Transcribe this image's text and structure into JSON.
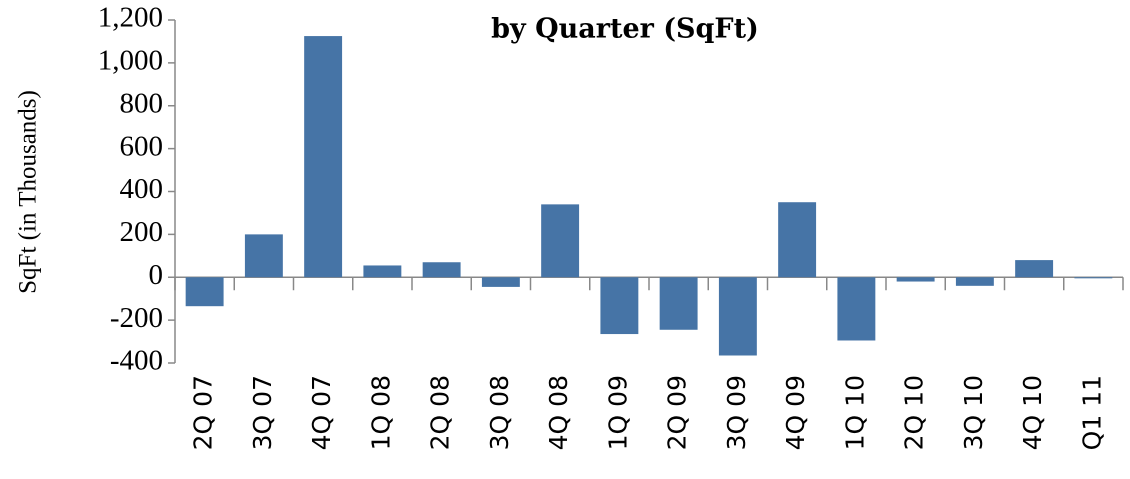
{
  "chart_data": {
    "type": "bar",
    "title": "by Quarter (SqFt)",
    "y_label": "SqFt  (in Thousands)",
    "categories": [
      "2Q 07",
      "3Q 07",
      "4Q 07",
      "1Q 08",
      "2Q 08",
      "3Q 08",
      "4Q 08",
      "1Q 09",
      "2Q 09",
      "3Q 09",
      "4Q 09",
      "1Q 10",
      "2Q 10",
      "3Q 10",
      "4Q 10",
      "Q1 11"
    ],
    "values": [
      -135,
      200,
      1125,
      55,
      70,
      -45,
      340,
      -265,
      -245,
      -365,
      350,
      -295,
      -20,
      -40,
      80,
      -5
    ],
    "color": "#4674a6",
    "ylim": [
      -400,
      1200
    ],
    "yticks": [
      -400,
      -200,
      0,
      200,
      400,
      600,
      800,
      {
        "value": 1000,
        "label": "1,000"
      },
      {
        "value": 1200,
        "label": "1,200"
      }
    ]
  }
}
